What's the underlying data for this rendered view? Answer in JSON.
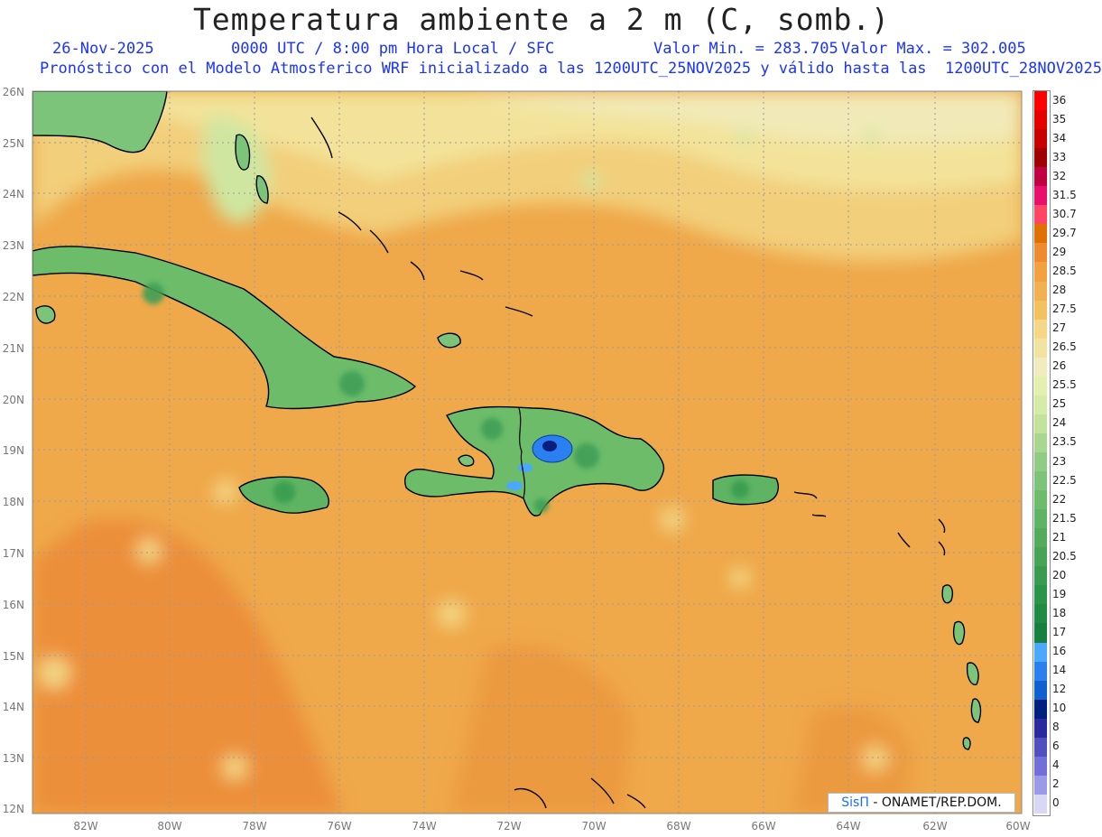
{
  "header": {
    "title": "Temperatura ambiente a 2 m (C, somb.)",
    "date": "26-Nov-2025",
    "time_line": "0000 UTC / 8:00 pm Hora Local / SFC",
    "min_label": "Valor Min. = 283.705",
    "max_label": "Valor Max. = 302.005",
    "model_line": "Pronóstico con el Modelo Atmosferico WRF inicializado a las 1200UTC_25NOV2025 y válido hasta las  1200UTC_28NOV2025"
  },
  "map": {
    "lat_labels": [
      "26N",
      "25N",
      "24N",
      "23N",
      "22N",
      "21N",
      "20N",
      "19N",
      "18N",
      "17N",
      "16N",
      "15N",
      "14N",
      "13N",
      "12N"
    ],
    "lon_labels": [
      "82W",
      "80W",
      "78W",
      "76W",
      "74W",
      "72W",
      "70W",
      "68W",
      "66W",
      "64W",
      "62W",
      "60W"
    ],
    "colors": {
      "ocean_warm": "#efa84a",
      "ocean_hot": "#ec8f3a",
      "ocean_mild": "#f2c46a",
      "north_cool": "#f3e39a",
      "land_green": "#6cbc6a",
      "land_dark": "#3f9f57",
      "cold_core": "#2a63d8"
    }
  },
  "colorbar": {
    "labels": [
      "36",
      "35",
      "34",
      "33",
      "32",
      "31.5",
      "30.7",
      "29.7",
      "29",
      "28.5",
      "28",
      "27.5",
      "27",
      "26.5",
      "26",
      "25.5",
      "25",
      "24",
      "23.5",
      "23",
      "22.5",
      "22",
      "21.5",
      "21",
      "20.5",
      "20",
      "19",
      "18",
      "17",
      "16",
      "14",
      "12",
      "10",
      "8",
      "6",
      "4",
      "2",
      "0"
    ],
    "colors": [
      "#ff0000",
      "#e60000",
      "#c80000",
      "#a00000",
      "#c00040",
      "#e8106a",
      "#ff4466",
      "#e07000",
      "#f08a30",
      "#f2a040",
      "#f3b050",
      "#f4c060",
      "#f6d788",
      "#f2e4a0",
      "#f0ecbe",
      "#e4f0b0",
      "#d4ebaa",
      "#c2e39c",
      "#a8d890",
      "#90cc84",
      "#7cc47a",
      "#6cbc6a",
      "#5eb462",
      "#52ac5c",
      "#46a456",
      "#389c50",
      "#2a944a",
      "#1e8c44",
      "#168040",
      "#4aa8ff",
      "#2a80f0",
      "#1060d0",
      "#002080",
      "#2a2aa0",
      "#5050c0",
      "#7070d8",
      "#9a9ae8",
      "#d8d8f6"
    ]
  },
  "credit": {
    "brand": "SisΠ",
    "org": " - ONAMET/REP.DOM."
  }
}
